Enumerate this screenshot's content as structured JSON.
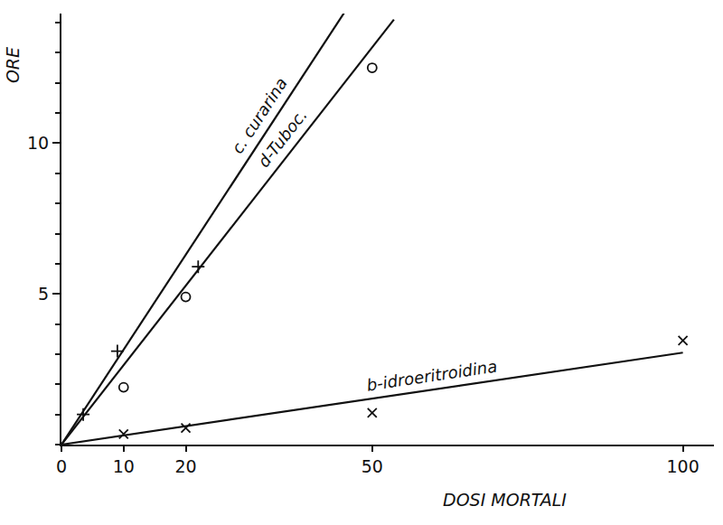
{
  "chart_data": {
    "type": "scatter",
    "x_label": "DOSI MORTALI",
    "y_label": "ORE",
    "xlim": [
      0,
      105
    ],
    "ylim": [
      0,
      14.3
    ],
    "xticks": [
      0,
      10,
      20,
      50,
      100
    ],
    "yticks": [
      5,
      10
    ],
    "grid": false,
    "series": [
      {
        "name": "c. curarina",
        "color": "#111111",
        "marker": "cross",
        "line_style": "solid",
        "x": [
          3.5,
          9,
          22
        ],
        "values": [
          1.0,
          3.1,
          5.9
        ],
        "fit": {
          "x": [
            0,
            47
          ],
          "values": [
            0,
            14.8
          ]
        }
      },
      {
        "name": "d-Tuboc.",
        "color": "#111111",
        "marker": "circle",
        "line_style": "solid",
        "x": [
          10,
          20,
          50
        ],
        "values": [
          1.9,
          4.9,
          12.5
        ],
        "fit": {
          "x": [
            0,
            53.5
          ],
          "values": [
            0,
            14.1
          ]
        }
      },
      {
        "name": "b-idroeritroidina",
        "color": "#111111",
        "marker": "x",
        "line_style": "solid",
        "x": [
          10,
          20,
          50,
          100
        ],
        "values": [
          0.35,
          0.55,
          1.05,
          3.45
        ],
        "fit": {
          "x": [
            0,
            100
          ],
          "values": [
            0,
            3.05
          ]
        }
      }
    ]
  }
}
